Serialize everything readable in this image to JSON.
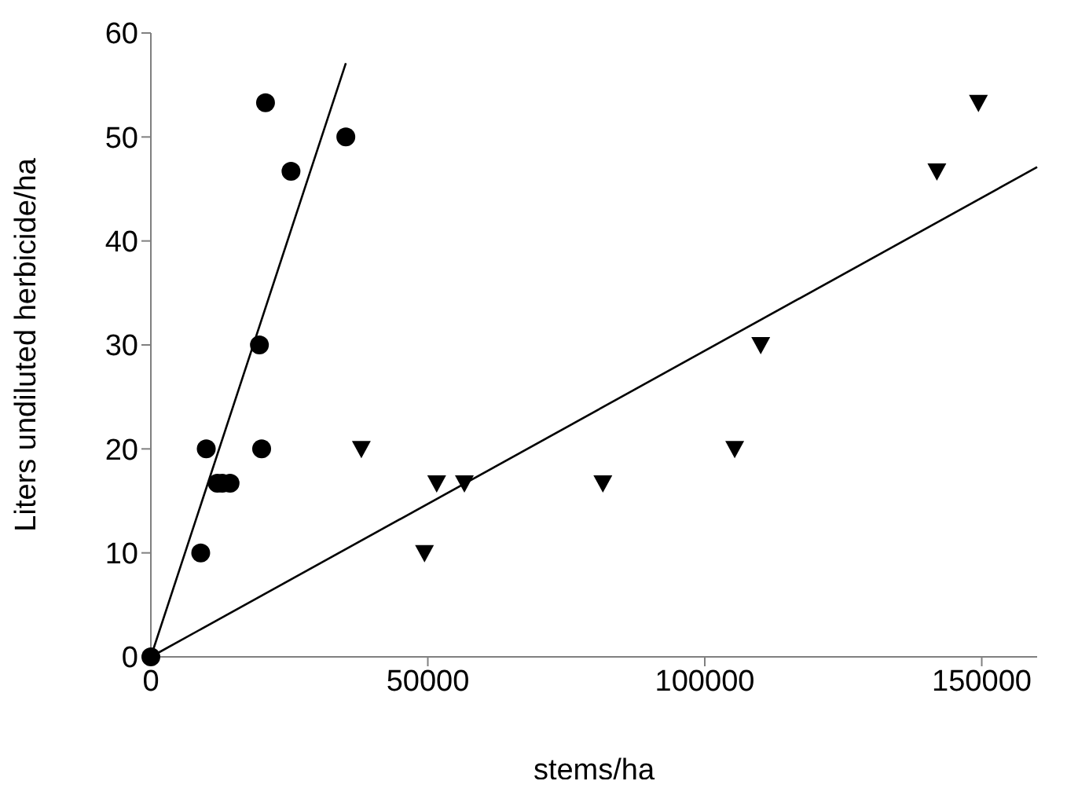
{
  "chart_data": {
    "type": "scatter",
    "xlabel": "stems/ha",
    "ylabel": "Liters undiluted herbicide/ha",
    "xlim": [
      0,
      160000
    ],
    "ylim": [
      0,
      60
    ],
    "xticks": [
      0,
      50000,
      100000,
      150000
    ],
    "yticks": [
      0,
      10,
      20,
      30,
      40,
      50,
      60
    ],
    "grid": false,
    "series": [
      {
        "marker": "circle",
        "color": "#000000",
        "x": [
          0,
          9000,
          10000,
          12000,
          12900,
          14300,
          19600,
          20000,
          20700,
          25300,
          35200
        ],
        "values": [
          0,
          10,
          20,
          16.7,
          16.7,
          16.7,
          30,
          20,
          53.3,
          46.7,
          50
        ]
      },
      {
        "marker": "triangle",
        "color": "#000000",
        "x": [
          38000,
          49400,
          51600,
          56600,
          81600,
          105400,
          110100,
          141900,
          149400
        ],
        "values": [
          20,
          10,
          16.7,
          16.7,
          16.7,
          20,
          30,
          46.7,
          53.3
        ]
      },
      {
        "type": "line",
        "marker": "none",
        "color": "#000000",
        "x": [
          0,
          35200
        ],
        "values": [
          0,
          57.1
        ]
      },
      {
        "type": "line",
        "marker": "none",
        "color": "#000000",
        "x": [
          0,
          160000
        ],
        "values": [
          0,
          47.1
        ]
      }
    ]
  }
}
